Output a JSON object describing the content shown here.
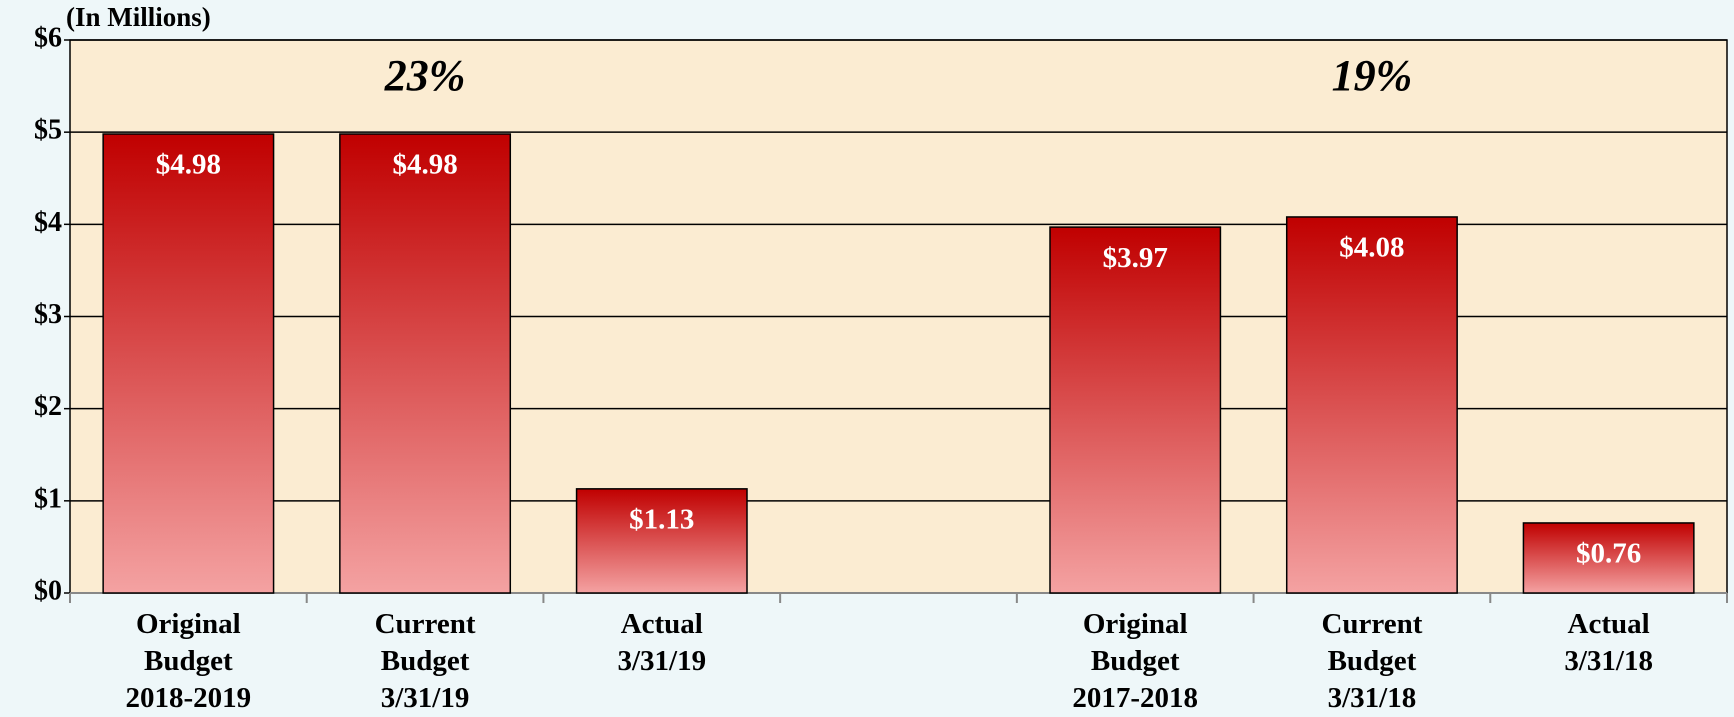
{
  "chart_data": {
    "type": "bar",
    "subtitle": "(In Millions)",
    "categories": [
      "Original\nBudget\n2018-2019",
      "Current\nBudget\n3/31/19",
      "Actual\n3/31/19",
      null,
      "Original\nBudget\n2017-2018",
      "Current\nBudget\n3/31/18",
      "Actual\n3/31/18"
    ],
    "values": [
      4.98,
      4.98,
      1.13,
      null,
      3.97,
      4.08,
      0.76
    ],
    "value_labels": [
      "$4.98",
      "$4.98",
      "$1.13",
      null,
      "$3.97",
      "$4.08",
      "$0.76"
    ],
    "color": "#c00000",
    "annotations": [
      "23%",
      "19%"
    ],
    "ylim": [
      0,
      6
    ],
    "yticks": [
      {
        "value": 0,
        "label": "$0"
      },
      {
        "value": 1,
        "label": "$1"
      },
      {
        "value": 2,
        "label": "$2"
      },
      {
        "value": 3,
        "label": "$3"
      },
      {
        "value": 4,
        "label": "$4"
      },
      {
        "value": 5,
        "label": "$5"
      },
      {
        "value": 6,
        "label": "$6"
      }
    ],
    "grid": true
  }
}
